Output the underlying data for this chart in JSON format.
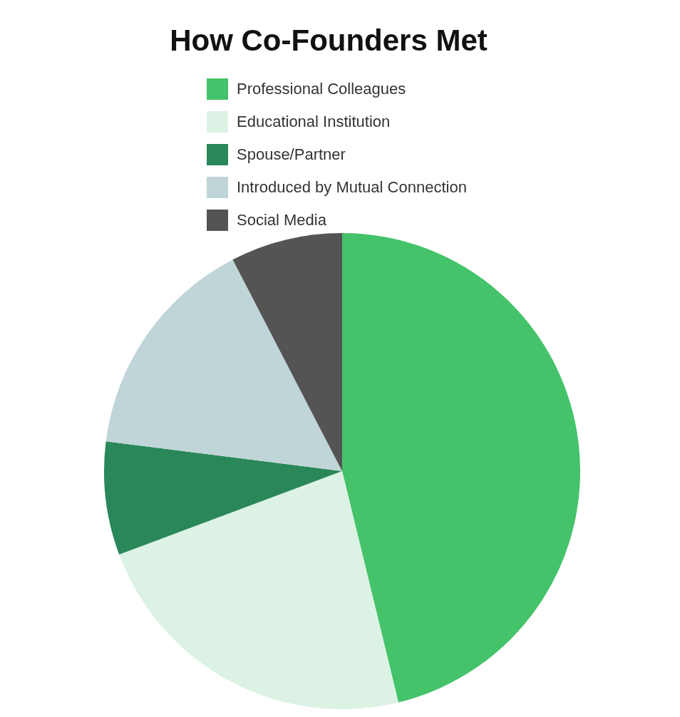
{
  "chart_data": {
    "type": "pie",
    "title": "How Co-Founders Met",
    "categories": [
      "Professional Colleagues",
      "Educational Institution",
      "Spouse/Partner",
      "Introduced by Mutual Connection",
      "Social Media"
    ],
    "values": [
      46.2,
      23.1,
      7.7,
      15.4,
      7.6
    ],
    "colors": [
      "#44c36a",
      "#dcf2e4",
      "#2a8759",
      "#c0d5d8",
      "#545454"
    ],
    "legend": "top"
  }
}
